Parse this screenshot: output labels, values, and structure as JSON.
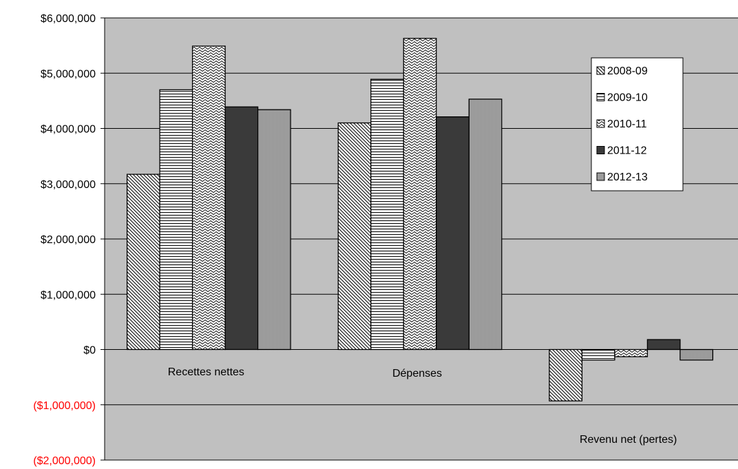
{
  "chart_data": {
    "type": "bar",
    "title": "",
    "xlabel": "",
    "ylabel": "",
    "categories": [
      "Recettes nettes",
      "Dépenses",
      "Revenu net (pertes)"
    ],
    "series": [
      {
        "name": "2008-09",
        "values": [
          3170000,
          4100000,
          -930000
        ],
        "pattern": "diag-down"
      },
      {
        "name": "2009-10",
        "values": [
          4700000,
          4890000,
          -190000
        ],
        "pattern": "horizontal"
      },
      {
        "name": "2010-11",
        "values": [
          5490000,
          5630000,
          -130000
        ],
        "pattern": "wave"
      },
      {
        "name": "2011-12",
        "values": [
          4390000,
          4210000,
          180000
        ],
        "pattern": "solid-dark"
      },
      {
        "name": "2012-13",
        "values": [
          4340000,
          4530000,
          -190000
        ],
        "pattern": "fine-dots"
      }
    ],
    "ylim": [
      -2000000,
      6000000
    ],
    "yticks": [
      {
        "value": 6000000,
        "label": "$6,000,000"
      },
      {
        "value": 5000000,
        "label": "$5,000,000"
      },
      {
        "value": 4000000,
        "label": "$4,000,000"
      },
      {
        "value": 3000000,
        "label": "$3,000,000"
      },
      {
        "value": 2000000,
        "label": "$2,000,000"
      },
      {
        "value": 1000000,
        "label": "$1,000,000"
      },
      {
        "value": 0,
        "label": "$0"
      },
      {
        "value": -1000000,
        "label": "($1,000,000)"
      },
      {
        "value": -2000000,
        "label": "($2,000,000)"
      }
    ],
    "grid": true,
    "legend_position": "top-right",
    "colors": {
      "plot_background": "#c0c0c0",
      "negative_tick": "#ff0000",
      "positive_tick": "#000000",
      "dark_bar": "#3a3a3a"
    }
  }
}
